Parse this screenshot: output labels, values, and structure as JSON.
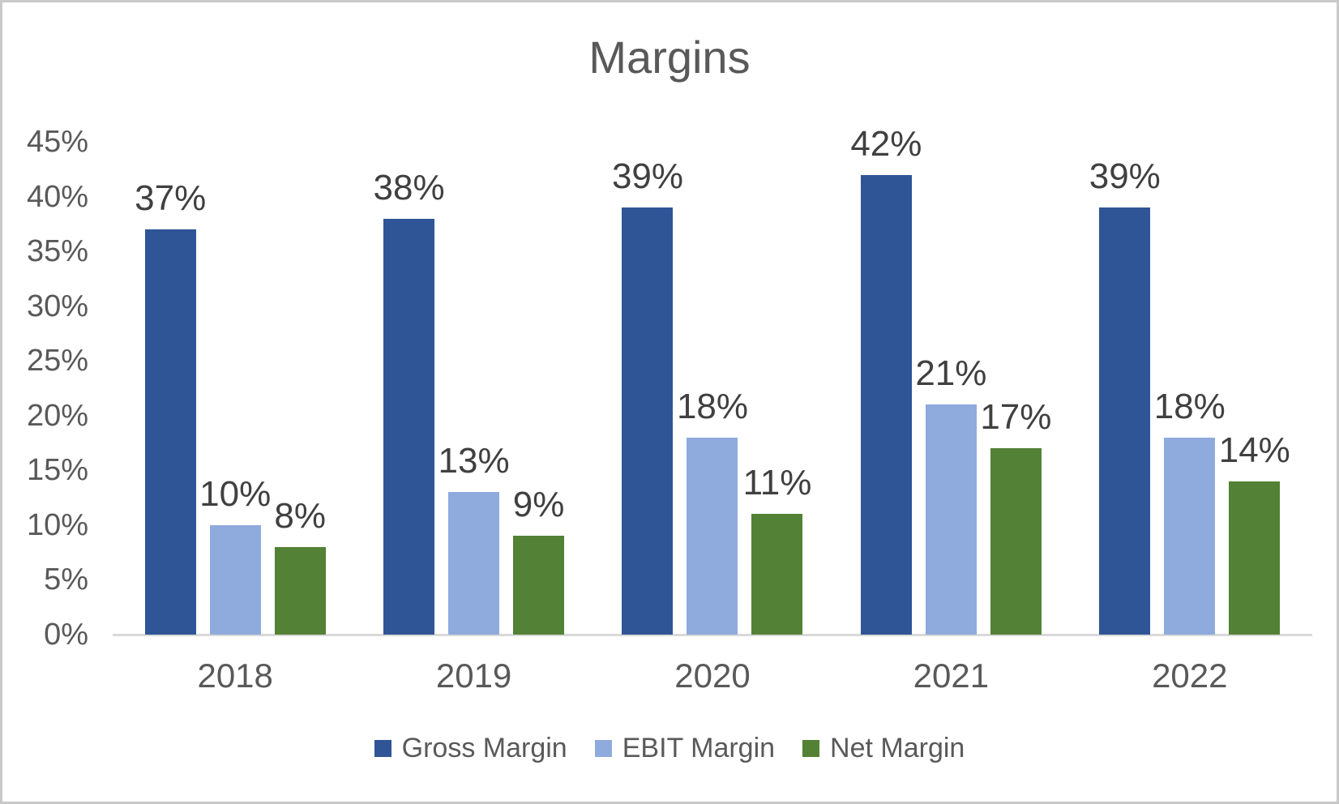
{
  "chart_data": {
    "type": "bar",
    "title": "Margins",
    "categories": [
      "2018",
      "2019",
      "2020",
      "2021",
      "2022"
    ],
    "series": [
      {
        "name": "Gross Margin",
        "color": "#2F5596",
        "values": [
          37,
          38,
          39,
          42,
          39
        ],
        "labels": [
          "37%",
          "38%",
          "39%",
          "42%",
          "39%"
        ]
      },
      {
        "name": "EBIT Margin",
        "color": "#8FAADC",
        "values": [
          10,
          13,
          18,
          21,
          18
        ],
        "labels": [
          "10%",
          "13%",
          "18%",
          "21%",
          "18%"
        ]
      },
      {
        "name": "Net Margin",
        "color": "#538135",
        "values": [
          8,
          9,
          11,
          17,
          14
        ],
        "labels": [
          "8%",
          "9%",
          "11%",
          "17%",
          "14%"
        ]
      }
    ],
    "xlabel": "",
    "ylabel": "",
    "ylim": [
      0,
      45
    ],
    "y_ticks": [
      "0%",
      "5%",
      "10%",
      "15%",
      "20%",
      "25%",
      "30%",
      "35%",
      "40%",
      "45%"
    ],
    "grid": false,
    "legend_position": "bottom",
    "colors": {
      "axis_text": "#595959",
      "data_label_text": "#404040",
      "baseline": "#D9D9D9",
      "title_text": "#595959",
      "page_border": "#C9C9C9",
      "background": "#FFFFFF"
    }
  }
}
